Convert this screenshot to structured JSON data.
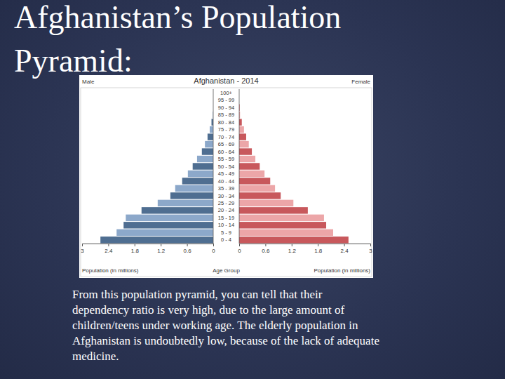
{
  "slide": {
    "title": "Afghanistan’s Population Pyramid:",
    "body": [
      "From this population pyramid, you can tell that their",
      "dependency ratio is very high, due to the large amount of",
      "children/teens under working age. The elderly population in",
      "Afghanistan is undoubtedly low, because of the lack of adequate",
      "medicine."
    ]
  },
  "chart_data": {
    "type": "bar",
    "orientation": "horizontal",
    "title": "Afghanistan - 2014",
    "xlabel": "Population (in millions)",
    "ylabel": "Age Group",
    "categories": [
      "0 - 4",
      "5 - 9",
      "10 - 14",
      "15 - 19",
      "20 - 24",
      "25 - 29",
      "30 - 34",
      "35 - 39",
      "40 - 44",
      "45 - 49",
      "50 - 54",
      "55 - 59",
      "60 - 64",
      "65 - 69",
      "70 - 74",
      "75 - 79",
      "80 - 84",
      "85 - 89",
      "90 - 94",
      "95 - 99",
      "100+"
    ],
    "series": [
      {
        "name": "Male",
        "values": [
          2.58,
          2.21,
          2.05,
          2.0,
          1.64,
          1.27,
          0.98,
          0.87,
          0.71,
          0.58,
          0.47,
          0.37,
          0.26,
          0.19,
          0.13,
          0.08,
          0.04,
          0.01,
          0,
          0,
          0
        ],
        "colors": [
          "#4f6e91",
          "#8ca8ca",
          "#4f6e91",
          "#8ca8ca",
          "#4f6e91",
          "#8ca8ca",
          "#4f6e91",
          "#8ca8ca",
          "#4f6e91",
          "#8ca8ca",
          "#4f6e91",
          "#8ca8ca",
          "#4f6e91",
          "#8ca8ca",
          "#4f6e91",
          "#8ca8ca",
          "#4f6e91",
          "#8ca8ca",
          "#4f6e91",
          "#8ca8ca",
          "#4f6e91"
        ]
      },
      {
        "name": "Female",
        "values": [
          2.5,
          2.15,
          1.99,
          1.94,
          1.57,
          1.24,
          0.95,
          0.82,
          0.71,
          0.58,
          0.47,
          0.37,
          0.29,
          0.22,
          0.16,
          0.11,
          0.06,
          0.02,
          0.01,
          0,
          0
        ],
        "colors": [
          "#c8585c",
          "#eca6a8",
          "#c8585c",
          "#eca6a8",
          "#c8585c",
          "#eca6a8",
          "#c8585c",
          "#eca6a8",
          "#c8585c",
          "#eca6a8",
          "#c8585c",
          "#eca6a8",
          "#c8585c",
          "#eca6a8",
          "#c8585c",
          "#eca6a8",
          "#c8585c",
          "#eca6a8",
          "#c8585c",
          "#eca6a8",
          "#c8585c"
        ]
      }
    ],
    "xlim": [
      0,
      3
    ],
    "xticks": [
      0,
      0.6,
      1.2,
      1.8,
      2.4,
      3
    ],
    "grid": false
  }
}
